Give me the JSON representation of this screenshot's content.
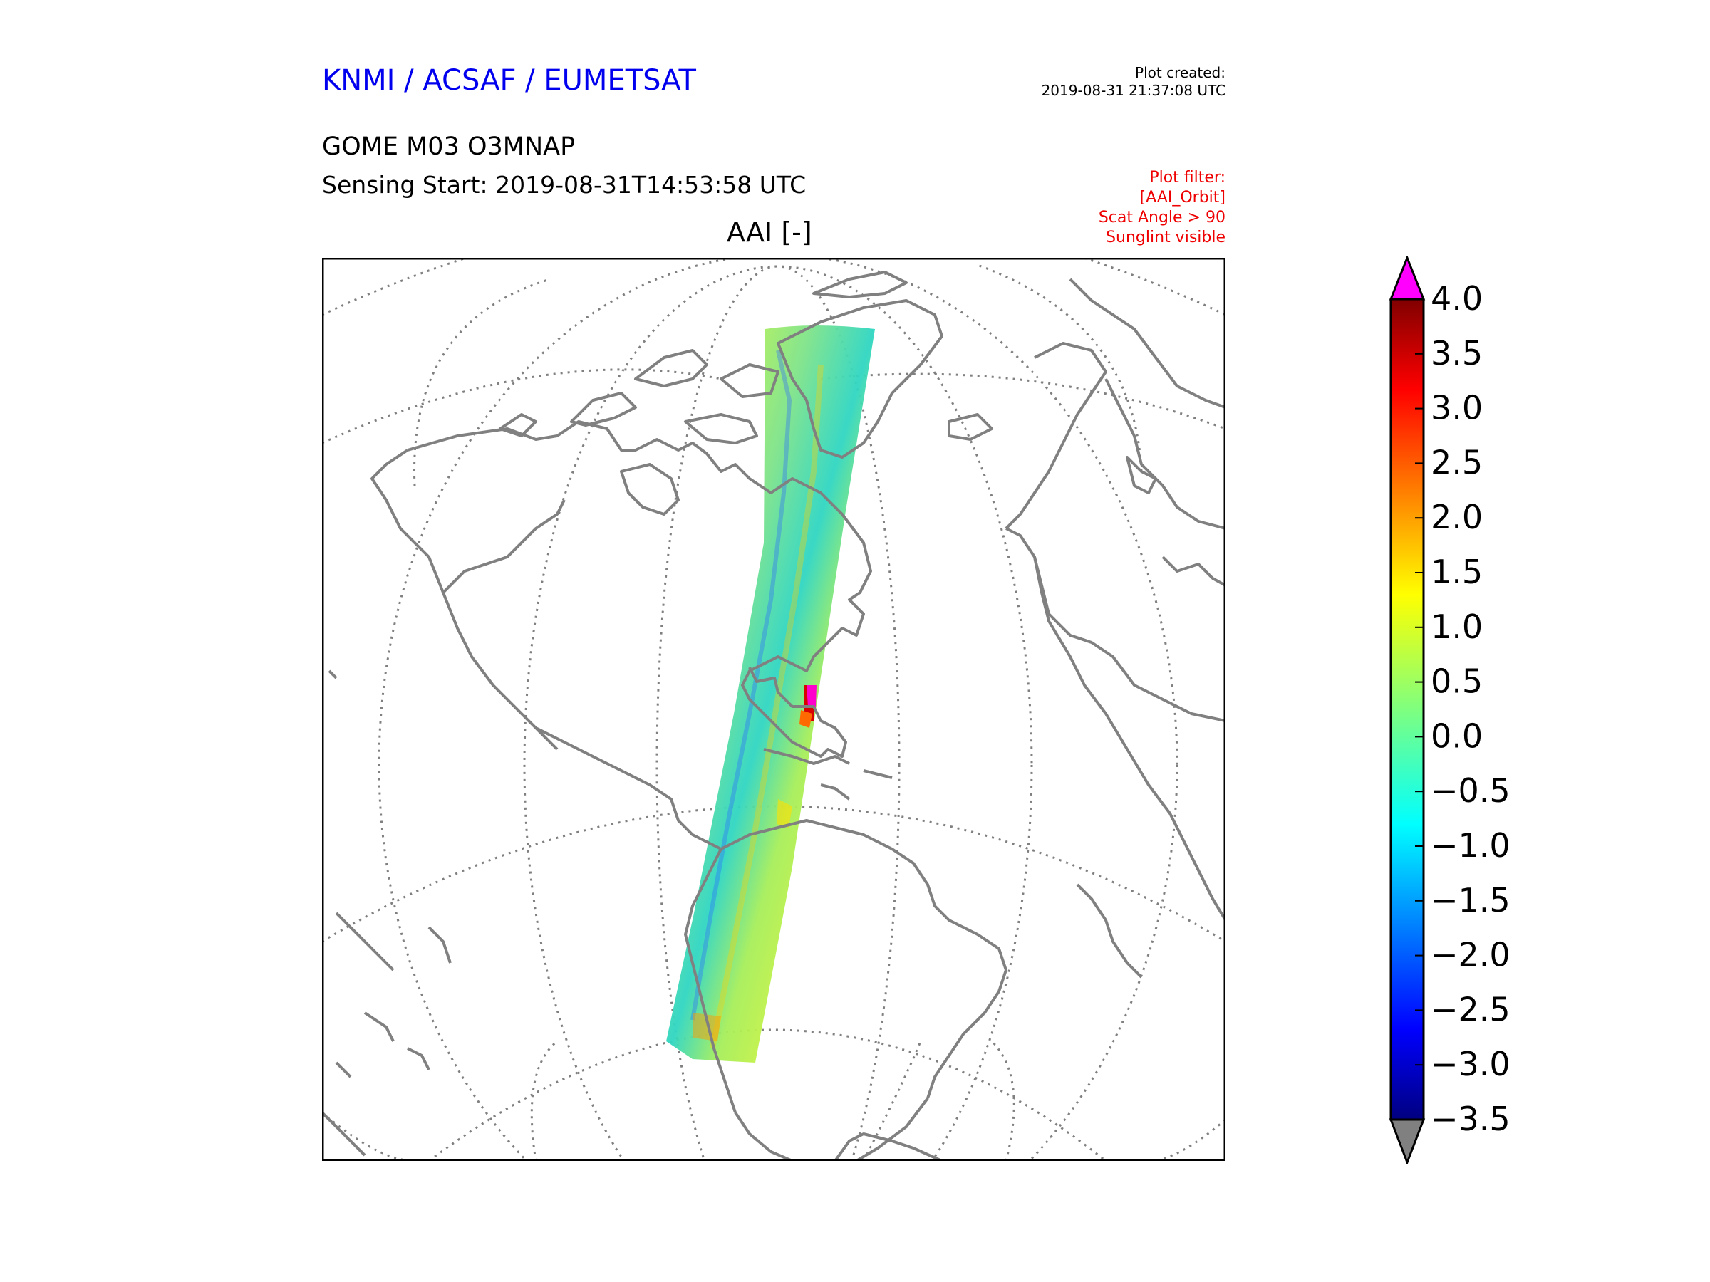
{
  "header": {
    "organization": "KNMI / ACSAF / EUMETSAT",
    "plot_created_label": "Plot created:",
    "plot_created_value": "2019-08-31 21:37:08 UTC",
    "product": "GOME M03 O3MNAP",
    "sensing_start": "Sensing Start: 2019-08-31T14:53:58 UTC"
  },
  "filter": {
    "title": "Plot filter:",
    "lines": [
      "[AAI_Orbit]",
      "Scat Angle > 90",
      "Sunglint visible"
    ]
  },
  "map": {
    "title": "AAI [-]",
    "projection": "orthographic",
    "coastline_color": "#808080",
    "graticule_color": "#808080",
    "swath_description": "GOME-2 orbit swath of Absorbing Aerosol Index from Arctic to Antarctic over the Americas"
  },
  "colorbar": {
    "ticks": [
      "4.0",
      "3.5",
      "3.0",
      "2.5",
      "2.0",
      "1.5",
      "1.0",
      "0.5",
      "0.0",
      "−0.5",
      "−1.0",
      "−1.5",
      "−2.0",
      "−2.5",
      "−3.0",
      "−3.5"
    ],
    "range": [
      -3.5,
      4.0
    ],
    "over_color": "#ff00ff",
    "under_color": "#808080",
    "colormap": "jet"
  }
}
